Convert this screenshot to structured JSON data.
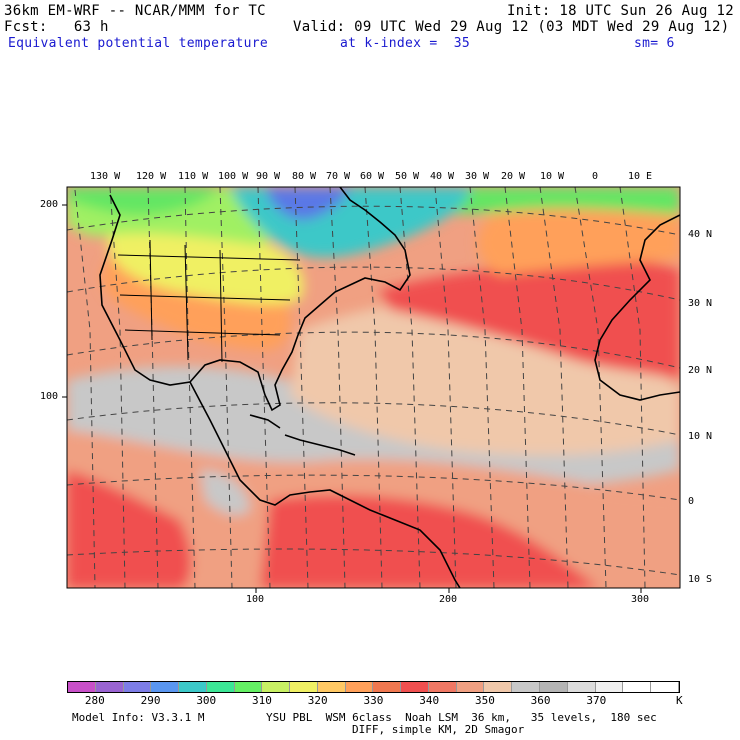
{
  "header": {
    "model": "36km EM-WRF -- NCAR/MMM for TC",
    "init": "Init: 18 UTC Sun 26 Aug 12",
    "fcst": "Fcst:   63 h",
    "valid": "Valid: 09 UTC Wed 29 Aug 12 (03 MDT Wed 29 Aug 12)",
    "field": "Equivalent potential temperature",
    "level": "at k-index =  35",
    "smooth": "sm= 6"
  },
  "top_lon_labels": [
    "130 W",
    "120 W",
    "110 W",
    "100 W",
    "90 W",
    "80 W",
    "70 W",
    "60 W",
    "50 W",
    "40 W",
    "30 W",
    "20 W",
    "10 W",
    "0",
    "10 E"
  ],
  "right_lat_labels": [
    "40 N",
    "30 N",
    "20 N",
    "10 N",
    "0",
    "10 S"
  ],
  "left_grid_labels": [
    "200",
    "100"
  ],
  "bottom_grid_labels": [
    "100",
    "200",
    "300"
  ],
  "colorbar": {
    "labels": [
      "280",
      "290",
      "300",
      "310",
      "320",
      "330",
      "340",
      "350",
      "360",
      "370"
    ],
    "unit": "K",
    "colors": [
      "#c850c8",
      "#9a64d2",
      "#7d7de6",
      "#5a96f0",
      "#3cc8c8",
      "#3ce696",
      "#64f064",
      "#c8f064",
      "#f0f064",
      "#ffc864",
      "#ffa05a",
      "#f07850",
      "#f05050",
      "#f07864",
      "#f0a082",
      "#f0c8aa",
      "#c8c8c8",
      "#b4b4b4",
      "#dcdcdc",
      "#f0f0f0",
      "#ffffff",
      "#ffffff"
    ]
  },
  "footer": {
    "line1_left": "Model Info: V3.3.1 M",
    "line1_right": "YSU PBL  WSM 6class  Noah LSM  36 km,   35 levels,  180 sec",
    "line2": "DIFF, simple KM, 2D Smagor"
  },
  "map_colors": {
    "blue": "#5a78e6",
    "teal": "#3cc8c8",
    "green": "#64e664",
    "ltgreen": "#a0f064",
    "yellow": "#f0f064",
    "orange": "#ffa05a",
    "red": "#f05050",
    "salmon": "#f0a082",
    "peach": "#f0c8aa",
    "gray": "#c8c8c8"
  }
}
